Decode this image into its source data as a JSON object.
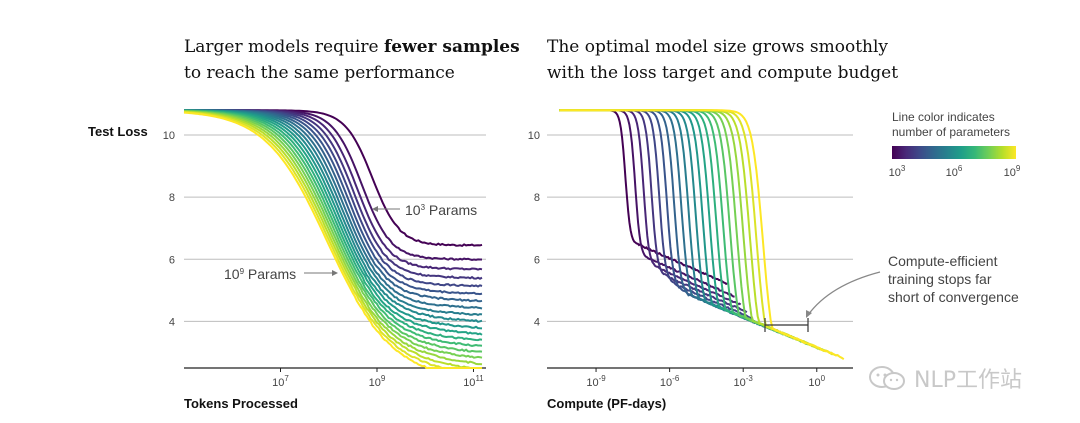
{
  "chart_data": [
    {
      "type": "line",
      "title_line1_plain": "Larger models require ",
      "title_line1_bold": "fewer samples",
      "title_line2": "to reach the same performance",
      "ylabel": "Test Loss",
      "xlabel": "Tokens Processed",
      "x_scale": "log",
      "xlim": [
        100000,
        200000000000
      ],
      "ylim": [
        2.5,
        11
      ],
      "yticks": [
        "10",
        "8",
        "6",
        "4"
      ],
      "xticks": [
        {
          "base": "10",
          "exp": "7"
        },
        {
          "base": "10",
          "exp": "9"
        },
        {
          "base": "10",
          "exp": "11"
        }
      ],
      "grid": "horizontal",
      "series_count": 20,
      "colormap": "viridis",
      "curves": {
        "start_loss": 10.8,
        "x_start": 100000,
        "x_end": 150000000000,
        "final_loss_range": [
          6.45,
          2.45
        ],
        "drop_center_range": [
          800000000,
          90000000
        ]
      },
      "annotations": [
        {
          "text_base": "10",
          "text_exp": "3",
          "text_suffix": " Params"
        },
        {
          "text_base": "10",
          "text_exp": "9",
          "text_suffix": " Params"
        }
      ]
    },
    {
      "type": "line",
      "title_line1": "The optimal model size grows smoothly",
      "title_line2": "with the loss target and compute budget",
      "xlabel": "Compute (PF-days)",
      "x_scale": "log",
      "xlim": [
        1e-11,
        30
      ],
      "ylim": [
        2.5,
        11
      ],
      "yticks": [
        "10",
        "8",
        "6",
        "4"
      ],
      "xticks": [
        {
          "base": "10",
          "exp": "-9"
        },
        {
          "base": "10",
          "exp": "-6"
        },
        {
          "base": "10",
          "exp": "-3"
        },
        {
          "base": "10",
          "exp": "0"
        }
      ],
      "grid": "horizontal",
      "series_count": 20,
      "colormap": "viridis",
      "legend": {
        "title_line1": "Line color indicates",
        "title_line2": "number of parameters",
        "min_label": {
          "base": "10",
          "exp": "3"
        },
        "mid_label": {
          "base": "10",
          "exp": "6"
        },
        "max_label": {
          "base": "10",
          "exp": "9"
        },
        "placement": "top-right"
      },
      "annotation": {
        "line1": "Compute-efficient",
        "line2": "training stops far",
        "line3": "short of convergence"
      }
    }
  ],
  "colors": {
    "viridis": [
      "#440154",
      "#482878",
      "#3e4989",
      "#31688e",
      "#26828e",
      "#1f9e89",
      "#35b779",
      "#6ece58",
      "#b5de2b",
      "#fde725"
    ],
    "grid": "#bdbdbd",
    "axis": "#222222"
  },
  "watermark": {
    "icon": "wechat-icon",
    "text": "NLP工作站"
  }
}
